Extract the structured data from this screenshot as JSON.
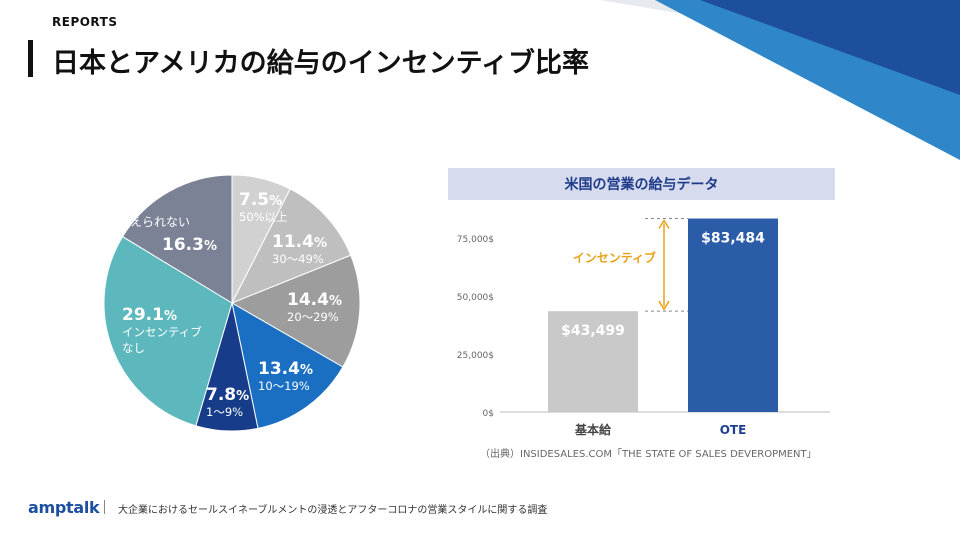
{
  "header": {
    "section_label": "REPORTS",
    "title": "日本とアメリカの給与のインセンティブ比率"
  },
  "colors": {
    "accent_dark": "#1e3f8f",
    "accent_blue": "#2f86c8",
    "teal": "#5cb8bd"
  },
  "chart_data": [
    {
      "type": "pie",
      "title": "",
      "slices": [
        {
          "value": 7.5,
          "value_text": "7.5",
          "unit": "%",
          "sub_label": "50%以上",
          "color": "#d1d1d1"
        },
        {
          "value": 11.4,
          "value_text": "11.4",
          "unit": "%",
          "sub_label": "30〜49%",
          "color": "#bfbfbf"
        },
        {
          "value": 14.4,
          "value_text": "14.4",
          "unit": "%",
          "sub_label": "20〜29%",
          "color": "#9d9d9d"
        },
        {
          "value": 13.4,
          "value_text": "13.4",
          "unit": "%",
          "sub_label": "10〜19%",
          "color": "#1a6fc2"
        },
        {
          "value": 7.8,
          "value_text": "7.8",
          "unit": "%",
          "sub_label": "1〜9%",
          "color": "#173d8a"
        },
        {
          "value": 29.1,
          "value_text": "29.1",
          "unit": "%",
          "sub_label": "インセンティブ\nなし",
          "color": "#5cb8bd"
        },
        {
          "value": 16.3,
          "value_text": "16.3",
          "unit": "%",
          "sub_label": "答えられない",
          "color": "#7b8296"
        }
      ]
    },
    {
      "type": "bar",
      "title": "米国の営業の給与データ",
      "categories": [
        "基本給",
        "OTE"
      ],
      "values": [
        43499,
        83484
      ],
      "value_labels": [
        "$43,499",
        "$83,484"
      ],
      "bar_colors": [
        "#c9c9c9",
        "#2a5ca8"
      ],
      "category_colors": [
        "#444444",
        "#1e3f8f"
      ],
      "y_ticks": [
        0,
        25000,
        50000,
        75000
      ],
      "y_tick_labels": [
        "0$",
        "25,000$",
        "50,000$",
        "75,000$"
      ],
      "ylim": [
        0,
        85000
      ],
      "annotation": "インセンティブ",
      "annotation_color": "#e8a21a"
    }
  ],
  "source": "（出典）INSIDESALES.COM「THE STATE OF SALES DEVEROPMENT」",
  "footer": {
    "logo": "amptalk",
    "text": "大企業におけるセールスイネーブルメントの浸透とアフターコロナの営業スタイルに関する調査"
  }
}
